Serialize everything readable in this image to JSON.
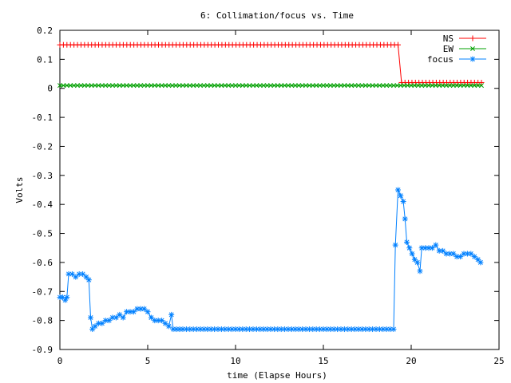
{
  "chart_data": {
    "type": "line",
    "title": "6: Collimation/focus vs. Time",
    "xlabel": "time (Elapse Hours)",
    "ylabel": "Volts",
    "xlim": [
      0,
      25
    ],
    "ylim": [
      -0.9,
      0.2
    ],
    "x_ticks": [
      "0",
      "5",
      "10",
      "15",
      "20",
      "25"
    ],
    "y_ticks": [
      "0.2",
      "0.1",
      "0",
      "-0.1",
      "-0.2",
      "-0.3",
      "-0.4",
      "-0.5",
      "-0.6",
      "-0.7",
      "-0.8",
      "-0.9"
    ],
    "grid": false,
    "legend": "top-right",
    "series": [
      {
        "name": "NS",
        "color": "#ff0000",
        "marker": "plus",
        "points": [
          [
            0,
            0.15
          ],
          [
            19.25,
            0.15
          ],
          [
            19.45,
            0.02
          ],
          [
            24,
            0.02
          ]
        ]
      },
      {
        "name": "EW",
        "color": "#00a000",
        "marker": "cross",
        "points": [
          [
            0,
            0.01
          ],
          [
            24,
            0.01
          ]
        ]
      },
      {
        "name": "focus",
        "color": "#0080ff",
        "marker": "star",
        "points": [
          [
            0,
            -0.72
          ],
          [
            0.15,
            -0.72
          ],
          [
            0.3,
            -0.73
          ],
          [
            0.4,
            -0.72
          ],
          [
            0.5,
            -0.64
          ],
          [
            0.7,
            -0.64
          ],
          [
            0.9,
            -0.65
          ],
          [
            1.1,
            -0.64
          ],
          [
            1.3,
            -0.64
          ],
          [
            1.5,
            -0.65
          ],
          [
            1.65,
            -0.66
          ],
          [
            1.75,
            -0.79
          ],
          [
            1.85,
            -0.83
          ],
          [
            2.0,
            -0.82
          ],
          [
            2.2,
            -0.81
          ],
          [
            2.4,
            -0.81
          ],
          [
            2.6,
            -0.8
          ],
          [
            2.8,
            -0.8
          ],
          [
            3.0,
            -0.79
          ],
          [
            3.2,
            -0.79
          ],
          [
            3.4,
            -0.78
          ],
          [
            3.6,
            -0.79
          ],
          [
            3.8,
            -0.77
          ],
          [
            4.0,
            -0.77
          ],
          [
            4.2,
            -0.77
          ],
          [
            4.4,
            -0.76
          ],
          [
            4.6,
            -0.76
          ],
          [
            4.8,
            -0.76
          ],
          [
            5.0,
            -0.77
          ],
          [
            5.2,
            -0.79
          ],
          [
            5.4,
            -0.8
          ],
          [
            5.6,
            -0.8
          ],
          [
            5.8,
            -0.8
          ],
          [
            6.0,
            -0.81
          ],
          [
            6.2,
            -0.82
          ],
          [
            6.35,
            -0.78
          ],
          [
            6.45,
            -0.83
          ],
          [
            7,
            -0.83
          ],
          [
            8,
            -0.83
          ],
          [
            9,
            -0.83
          ],
          [
            10,
            -0.83
          ],
          [
            11,
            -0.83
          ],
          [
            12,
            -0.83
          ],
          [
            13,
            -0.83
          ],
          [
            14,
            -0.83
          ],
          [
            15,
            -0.83
          ],
          [
            16,
            -0.83
          ],
          [
            17,
            -0.83
          ],
          [
            18,
            -0.83
          ],
          [
            19.0,
            -0.83
          ],
          [
            19.1,
            -0.54
          ],
          [
            19.25,
            -0.35
          ],
          [
            19.4,
            -0.37
          ],
          [
            19.55,
            -0.39
          ],
          [
            19.65,
            -0.45
          ],
          [
            19.75,
            -0.53
          ],
          [
            19.9,
            -0.55
          ],
          [
            20.05,
            -0.57
          ],
          [
            20.2,
            -0.59
          ],
          [
            20.35,
            -0.6
          ],
          [
            20.5,
            -0.63
          ],
          [
            20.6,
            -0.55
          ],
          [
            20.8,
            -0.55
          ],
          [
            21.0,
            -0.55
          ],
          [
            21.2,
            -0.55
          ],
          [
            21.4,
            -0.54
          ],
          [
            21.6,
            -0.56
          ],
          [
            21.8,
            -0.56
          ],
          [
            22.0,
            -0.57
          ],
          [
            22.2,
            -0.57
          ],
          [
            22.4,
            -0.57
          ],
          [
            22.6,
            -0.58
          ],
          [
            22.8,
            -0.58
          ],
          [
            23.0,
            -0.57
          ],
          [
            23.2,
            -0.57
          ],
          [
            23.4,
            -0.57
          ],
          [
            23.6,
            -0.58
          ],
          [
            23.8,
            -0.59
          ],
          [
            23.95,
            -0.6
          ]
        ]
      }
    ]
  }
}
